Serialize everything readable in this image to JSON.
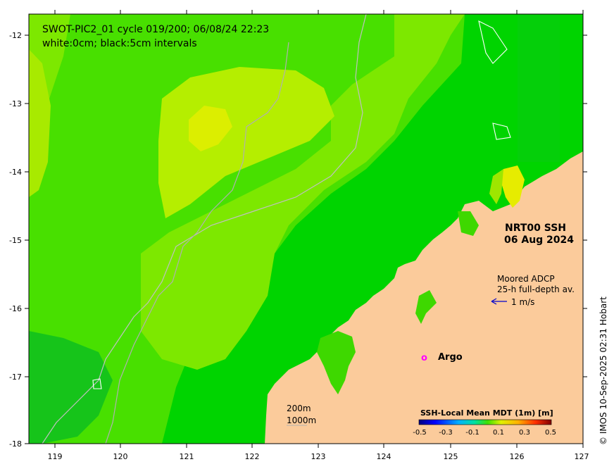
{
  "header": {
    "line1": "SWOT-PIC2_01 cycle 019/200; 06/08/24 22:23",
    "line2": "white:0cm; black:5cm intervals"
  },
  "product": {
    "name": "NRT00 SSH",
    "date": "06 Aug 2024"
  },
  "adcp": {
    "line1": "Moored ADCP",
    "line2": "25-h full-depth av.",
    "speed": "1 m/s"
  },
  "argo": {
    "marker": "o",
    "label": "Argo"
  },
  "depth_scale": {
    "line1": "200m",
    "line2": "1000m"
  },
  "colorbar": {
    "title": "SSH-Local Mean MDT (1m) [m]",
    "ticks": [
      "-0.5",
      "-0.3",
      "-0.1",
      "0.1",
      "0.3",
      "0.5"
    ]
  },
  "credit": "© IMOS 10-Sep-2025 02:31 Hobart",
  "axes": {
    "x_ticks": [
      "119",
      "120",
      "121",
      "122",
      "123",
      "124",
      "125",
      "126",
      "127"
    ],
    "y_ticks": [
      "-12",
      "-13",
      "-14",
      "-15",
      "-16",
      "-17",
      "-18"
    ],
    "lon_range": [
      118.6,
      127
    ],
    "lat_range": [
      -18,
      -11.7
    ]
  },
  "colors": {
    "land": "#fbcb9b",
    "ocean_mid": "#46e000",
    "ocean_low": "#00c800",
    "ocean_high": "#b8f000",
    "arrow": "#0000cc",
    "argo": "#ff00ff"
  }
}
